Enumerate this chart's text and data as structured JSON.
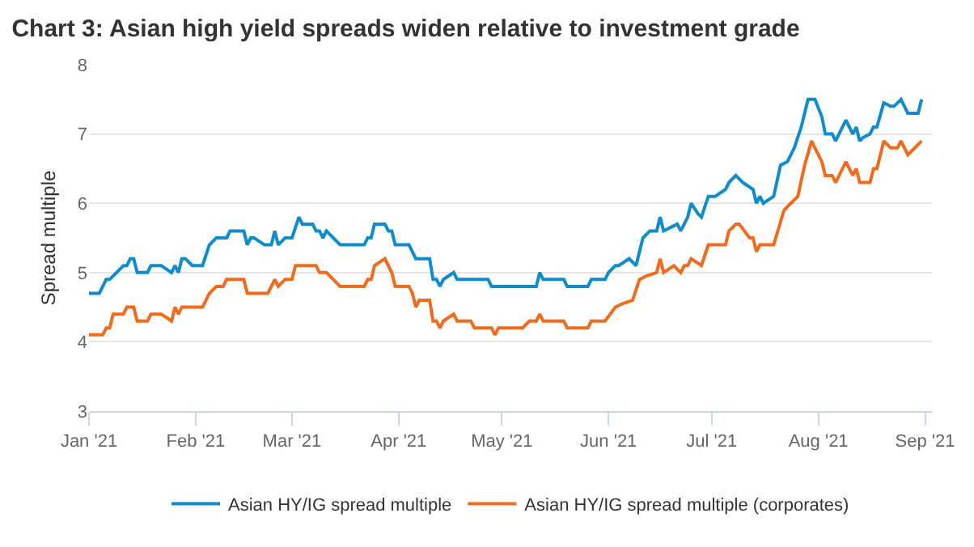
{
  "chart_data": {
    "type": "line",
    "title": "Chart 3: Asian high yield spreads widen relative to investment grade",
    "ylabel": "Spread multiple",
    "xlim": [
      "2021-01-01",
      "2021-09-03"
    ],
    "xticks": [
      {
        "value": "2021-01-01",
        "label": "Jan '21"
      },
      {
        "value": "2021-02-01",
        "label": "Feb '21"
      },
      {
        "value": "2021-03-01",
        "label": "Mar '21"
      },
      {
        "value": "2021-04-01",
        "label": "Apr '21"
      },
      {
        "value": "2021-05-01",
        "label": "May '21"
      },
      {
        "value": "2021-06-01",
        "label": "Jun '21"
      },
      {
        "value": "2021-07-01",
        "label": "Jul '21"
      },
      {
        "value": "2021-08-01",
        "label": "Aug '21"
      },
      {
        "value": "2021-09-01",
        "label": "Sep '21"
      }
    ],
    "ylim": [
      3,
      8
    ],
    "yticks": [
      3,
      4,
      5,
      6,
      7,
      8
    ],
    "grid": "y",
    "legend": "bottom",
    "marker": "none",
    "line_style": "solid",
    "series": [
      {
        "name": "Asian HY/IG spread multiple",
        "color": "#0f8ccc",
        "x": [
          "2021-01-01",
          "2021-01-04",
          "2021-01-06",
          "2021-01-07",
          "2021-01-09",
          "2021-01-11",
          "2021-01-12",
          "2021-01-13",
          "2021-01-14",
          "2021-01-15",
          "2021-01-18",
          "2021-01-19",
          "2021-01-22",
          "2021-01-25",
          "2021-01-26",
          "2021-01-27",
          "2021-01-28",
          "2021-01-29",
          "2021-01-31",
          "2021-02-03",
          "2021-02-05",
          "2021-02-07",
          "2021-02-10",
          "2021-02-11",
          "2021-02-15",
          "2021-02-16",
          "2021-02-17",
          "2021-02-18",
          "2021-02-21",
          "2021-02-23",
          "2021-02-24",
          "2021-02-25",
          "2021-02-27",
          "2021-03-01",
          "2021-03-03",
          "2021-03-04",
          "2021-03-07",
          "2021-03-08",
          "2021-03-09",
          "2021-03-10",
          "2021-03-11",
          "2021-03-13",
          "2021-03-15",
          "2021-03-22",
          "2021-03-23",
          "2021-03-24",
          "2021-03-25",
          "2021-03-28",
          "2021-03-29",
          "2021-03-30",
          "2021-03-31",
          "2021-04-04",
          "2021-04-05",
          "2021-04-06",
          "2021-04-10",
          "2021-04-11",
          "2021-04-12",
          "2021-04-13",
          "2021-04-14",
          "2021-04-17",
          "2021-04-18",
          "2021-04-20",
          "2021-04-27",
          "2021-04-28",
          "2021-05-11",
          "2021-05-12",
          "2021-05-13",
          "2021-05-19",
          "2021-05-20",
          "2021-05-26",
          "2021-05-27",
          "2021-05-31",
          "2021-06-01",
          "2021-06-03",
          "2021-06-04",
          "2021-06-07",
          "2021-06-09",
          "2021-06-11",
          "2021-06-13",
          "2021-06-15",
          "2021-06-16",
          "2021-06-17",
          "2021-06-19",
          "2021-06-21",
          "2021-06-22",
          "2021-06-24",
          "2021-06-25",
          "2021-06-27",
          "2021-06-28",
          "2021-06-30",
          "2021-07-02",
          "2021-07-05",
          "2021-07-06",
          "2021-07-08",
          "2021-07-10",
          "2021-07-13",
          "2021-07-14",
          "2021-07-15",
          "2021-07-16",
          "2021-07-19",
          "2021-07-21",
          "2021-07-23",
          "2021-07-25",
          "2021-07-27",
          "2021-07-29",
          "2021-07-31",
          "2021-08-02",
          "2021-08-03",
          "2021-08-05",
          "2021-08-06",
          "2021-08-09",
          "2021-08-11",
          "2021-08-12",
          "2021-08-13",
          "2021-08-14",
          "2021-08-16",
          "2021-08-17",
          "2021-08-18",
          "2021-08-20",
          "2021-08-22",
          "2021-08-23",
          "2021-08-25",
          "2021-08-27",
          "2021-08-30",
          "2021-08-31"
        ],
        "values": [
          4.7,
          4.7,
          4.9,
          4.9,
          5.0,
          5.1,
          5.1,
          5.2,
          5.2,
          5.0,
          5.0,
          5.1,
          5.1,
          5.0,
          5.1,
          5.0,
          5.2,
          5.2,
          5.1,
          5.1,
          5.4,
          5.5,
          5.5,
          5.6,
          5.6,
          5.4,
          5.5,
          5.5,
          5.4,
          5.4,
          5.6,
          5.4,
          5.5,
          5.5,
          5.8,
          5.7,
          5.7,
          5.6,
          5.6,
          5.5,
          5.6,
          5.5,
          5.4,
          5.4,
          5.5,
          5.5,
          5.7,
          5.7,
          5.6,
          5.6,
          5.4,
          5.4,
          5.3,
          5.2,
          5.2,
          4.9,
          4.9,
          4.8,
          4.9,
          5.0,
          4.9,
          4.9,
          4.9,
          4.8,
          4.8,
          5.0,
          4.9,
          4.9,
          4.8,
          4.8,
          4.9,
          4.9,
          5.0,
          5.1,
          5.1,
          5.2,
          5.1,
          5.5,
          5.6,
          5.6,
          5.8,
          5.6,
          5.65,
          5.7,
          5.6,
          5.8,
          6.0,
          5.85,
          5.8,
          6.1,
          6.1,
          6.2,
          6.3,
          6.4,
          6.3,
          6.2,
          6.0,
          6.1,
          6.0,
          6.1,
          6.55,
          6.6,
          6.8,
          7.1,
          7.5,
          7.5,
          7.25,
          7.0,
          7.0,
          6.9,
          7.2,
          7.0,
          7.1,
          6.9,
          6.95,
          7.0,
          7.1,
          7.1,
          7.45,
          7.4,
          7.4,
          7.5,
          7.3,
          7.3,
          7.5
        ]
      },
      {
        "name": "Asian HY/IG spread multiple (corporates)",
        "color": "#f26b1d",
        "x": [
          "2021-01-01",
          "2021-01-05",
          "2021-01-06",
          "2021-01-07",
          "2021-01-08",
          "2021-01-11",
          "2021-01-12",
          "2021-01-14",
          "2021-01-15",
          "2021-01-18",
          "2021-01-19",
          "2021-01-22",
          "2021-01-25",
          "2021-01-26",
          "2021-01-27",
          "2021-01-28",
          "2021-02-03",
          "2021-02-05",
          "2021-02-07",
          "2021-02-09",
          "2021-02-10",
          "2021-02-15",
          "2021-02-16",
          "2021-02-22",
          "2021-02-24",
          "2021-02-25",
          "2021-02-27",
          "2021-03-01",
          "2021-03-02",
          "2021-03-08",
          "2021-03-09",
          "2021-03-11",
          "2021-03-13",
          "2021-03-15",
          "2021-03-22",
          "2021-03-23",
          "2021-03-24",
          "2021-03-25",
          "2021-03-28",
          "2021-03-30",
          "2021-03-31",
          "2021-04-04",
          "2021-04-05",
          "2021-04-06",
          "2021-04-07",
          "2021-04-10",
          "2021-04-11",
          "2021-04-12",
          "2021-04-13",
          "2021-04-14",
          "2021-04-17",
          "2021-04-18",
          "2021-04-20",
          "2021-04-22",
          "2021-04-23",
          "2021-04-28",
          "2021-04-29",
          "2021-04-30",
          "2021-05-07",
          "2021-05-09",
          "2021-05-11",
          "2021-05-12",
          "2021-05-13",
          "2021-05-19",
          "2021-05-20",
          "2021-05-26",
          "2021-05-27",
          "2021-05-31",
          "2021-06-03",
          "2021-06-05",
          "2021-06-08",
          "2021-06-10",
          "2021-06-12",
          "2021-06-15",
          "2021-06-16",
          "2021-06-17",
          "2021-06-20",
          "2021-06-22",
          "2021-06-23",
          "2021-06-24",
          "2021-06-25",
          "2021-06-28",
          "2021-06-30",
          "2021-07-05",
          "2021-07-06",
          "2021-07-08",
          "2021-07-09",
          "2021-07-12",
          "2021-07-13",
          "2021-07-14",
          "2021-07-15",
          "2021-07-19",
          "2021-07-22",
          "2021-07-23",
          "2021-07-26",
          "2021-07-28",
          "2021-07-30",
          "2021-08-02",
          "2021-08-03",
          "2021-08-05",
          "2021-08-06",
          "2021-08-09",
          "2021-08-11",
          "2021-08-12",
          "2021-08-13",
          "2021-08-16",
          "2021-08-17",
          "2021-08-18",
          "2021-08-20",
          "2021-08-22",
          "2021-08-24",
          "2021-08-25",
          "2021-08-27",
          "2021-08-29",
          "2021-08-31"
        ],
        "values": [
          4.1,
          4.1,
          4.2,
          4.2,
          4.4,
          4.4,
          4.5,
          4.5,
          4.3,
          4.3,
          4.4,
          4.4,
          4.3,
          4.5,
          4.4,
          4.5,
          4.5,
          4.7,
          4.8,
          4.8,
          4.9,
          4.9,
          4.7,
          4.7,
          4.9,
          4.8,
          4.9,
          4.9,
          5.1,
          5.1,
          5.0,
          5.0,
          4.9,
          4.8,
          4.8,
          4.9,
          4.9,
          5.1,
          5.2,
          5.0,
          4.8,
          4.8,
          4.7,
          4.5,
          4.6,
          4.6,
          4.3,
          4.3,
          4.2,
          4.3,
          4.4,
          4.3,
          4.3,
          4.3,
          4.2,
          4.2,
          4.1,
          4.2,
          4.2,
          4.3,
          4.3,
          4.4,
          4.3,
          4.3,
          4.2,
          4.2,
          4.3,
          4.3,
          4.5,
          4.55,
          4.6,
          4.9,
          4.95,
          5.0,
          5.2,
          5.0,
          5.1,
          5.0,
          5.1,
          5.1,
          5.2,
          5.1,
          5.4,
          5.4,
          5.6,
          5.7,
          5.7,
          5.5,
          5.5,
          5.3,
          5.4,
          5.4,
          5.9,
          5.95,
          6.1,
          6.55,
          6.9,
          6.6,
          6.4,
          6.4,
          6.3,
          6.6,
          6.4,
          6.5,
          6.3,
          6.3,
          6.5,
          6.5,
          6.9,
          6.8,
          6.8,
          6.9,
          6.7,
          6.8,
          6.9
        ]
      }
    ]
  }
}
